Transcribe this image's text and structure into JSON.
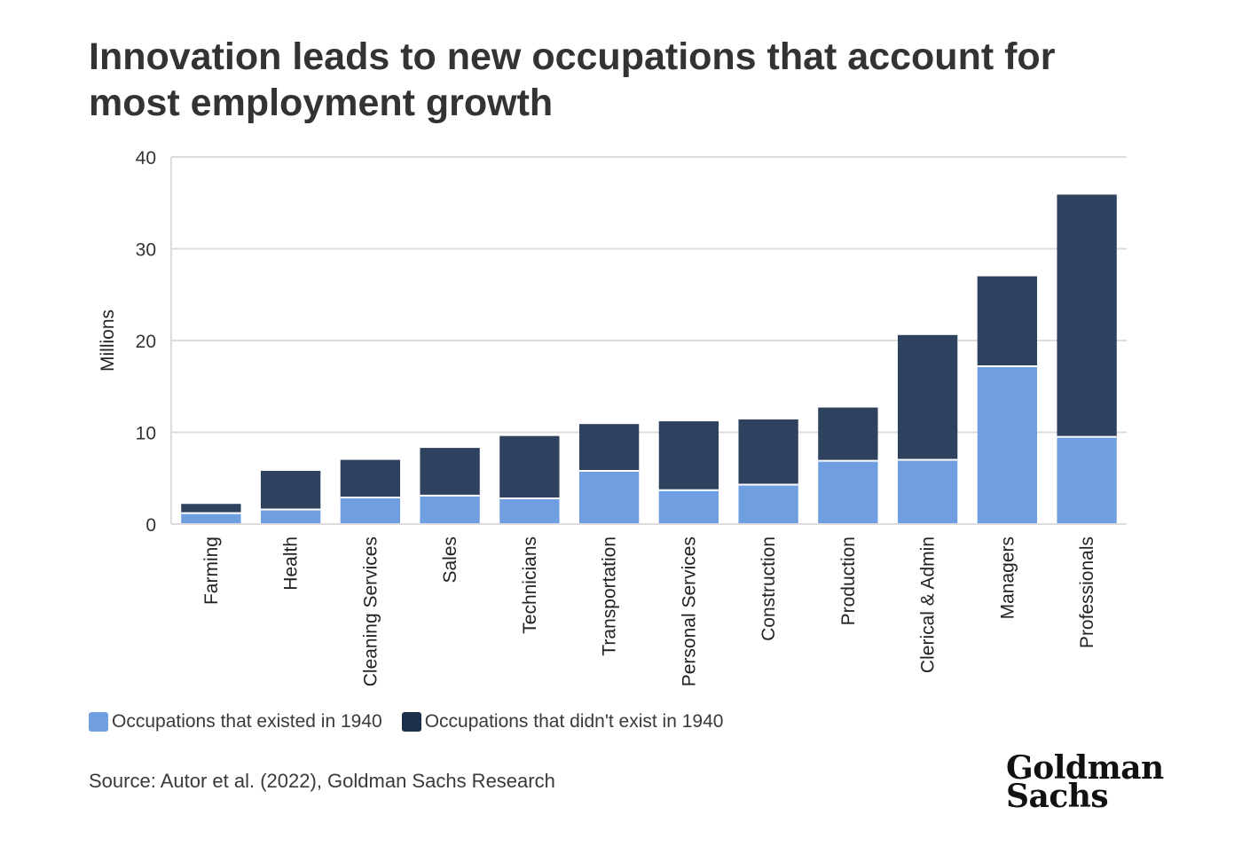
{
  "title": "Innovation leads to new occupations that account for most employment growth",
  "source": "Source: Autor et al. (2022), Goldman Sachs Research",
  "logo": {
    "line1": "Goldman",
    "line2": "Sachs"
  },
  "colors": {
    "existed": "#6f9fe0",
    "new": "#2e4260",
    "grid": "#dcdcdc",
    "axis": "#333333"
  },
  "legend": [
    {
      "label": "Occupations that existed in 1940",
      "color": "#6f9fe0"
    },
    {
      "label": "Occupations that didn't exist in 1940",
      "color": "#1e2f4a"
    }
  ],
  "chart_data": {
    "type": "bar",
    "stacked": true,
    "ylabel": "Millions",
    "ylim": [
      0,
      40
    ],
    "yticks": [
      0,
      10,
      20,
      30,
      40
    ],
    "grid": true,
    "legend_position": "bottom-left",
    "categories": [
      "Farming",
      "Health",
      "Cleaning Services",
      "Sales",
      "Technicians",
      "Transportation",
      "Personal Services",
      "Construction",
      "Production",
      "Clerical & Admin",
      "Managers",
      "Professionals"
    ],
    "series": [
      {
        "name": "Occupations that existed in 1940",
        "values": [
          1.2,
          1.6,
          2.9,
          3.1,
          2.8,
          5.8,
          3.7,
          4.3,
          6.9,
          7.0,
          17.2,
          9.5
        ]
      },
      {
        "name": "Occupations that didn't exist in 1940",
        "values": [
          1.0,
          4.2,
          4.1,
          5.2,
          6.8,
          5.1,
          7.5,
          7.1,
          5.8,
          13.6,
          9.8,
          26.4
        ]
      }
    ]
  }
}
